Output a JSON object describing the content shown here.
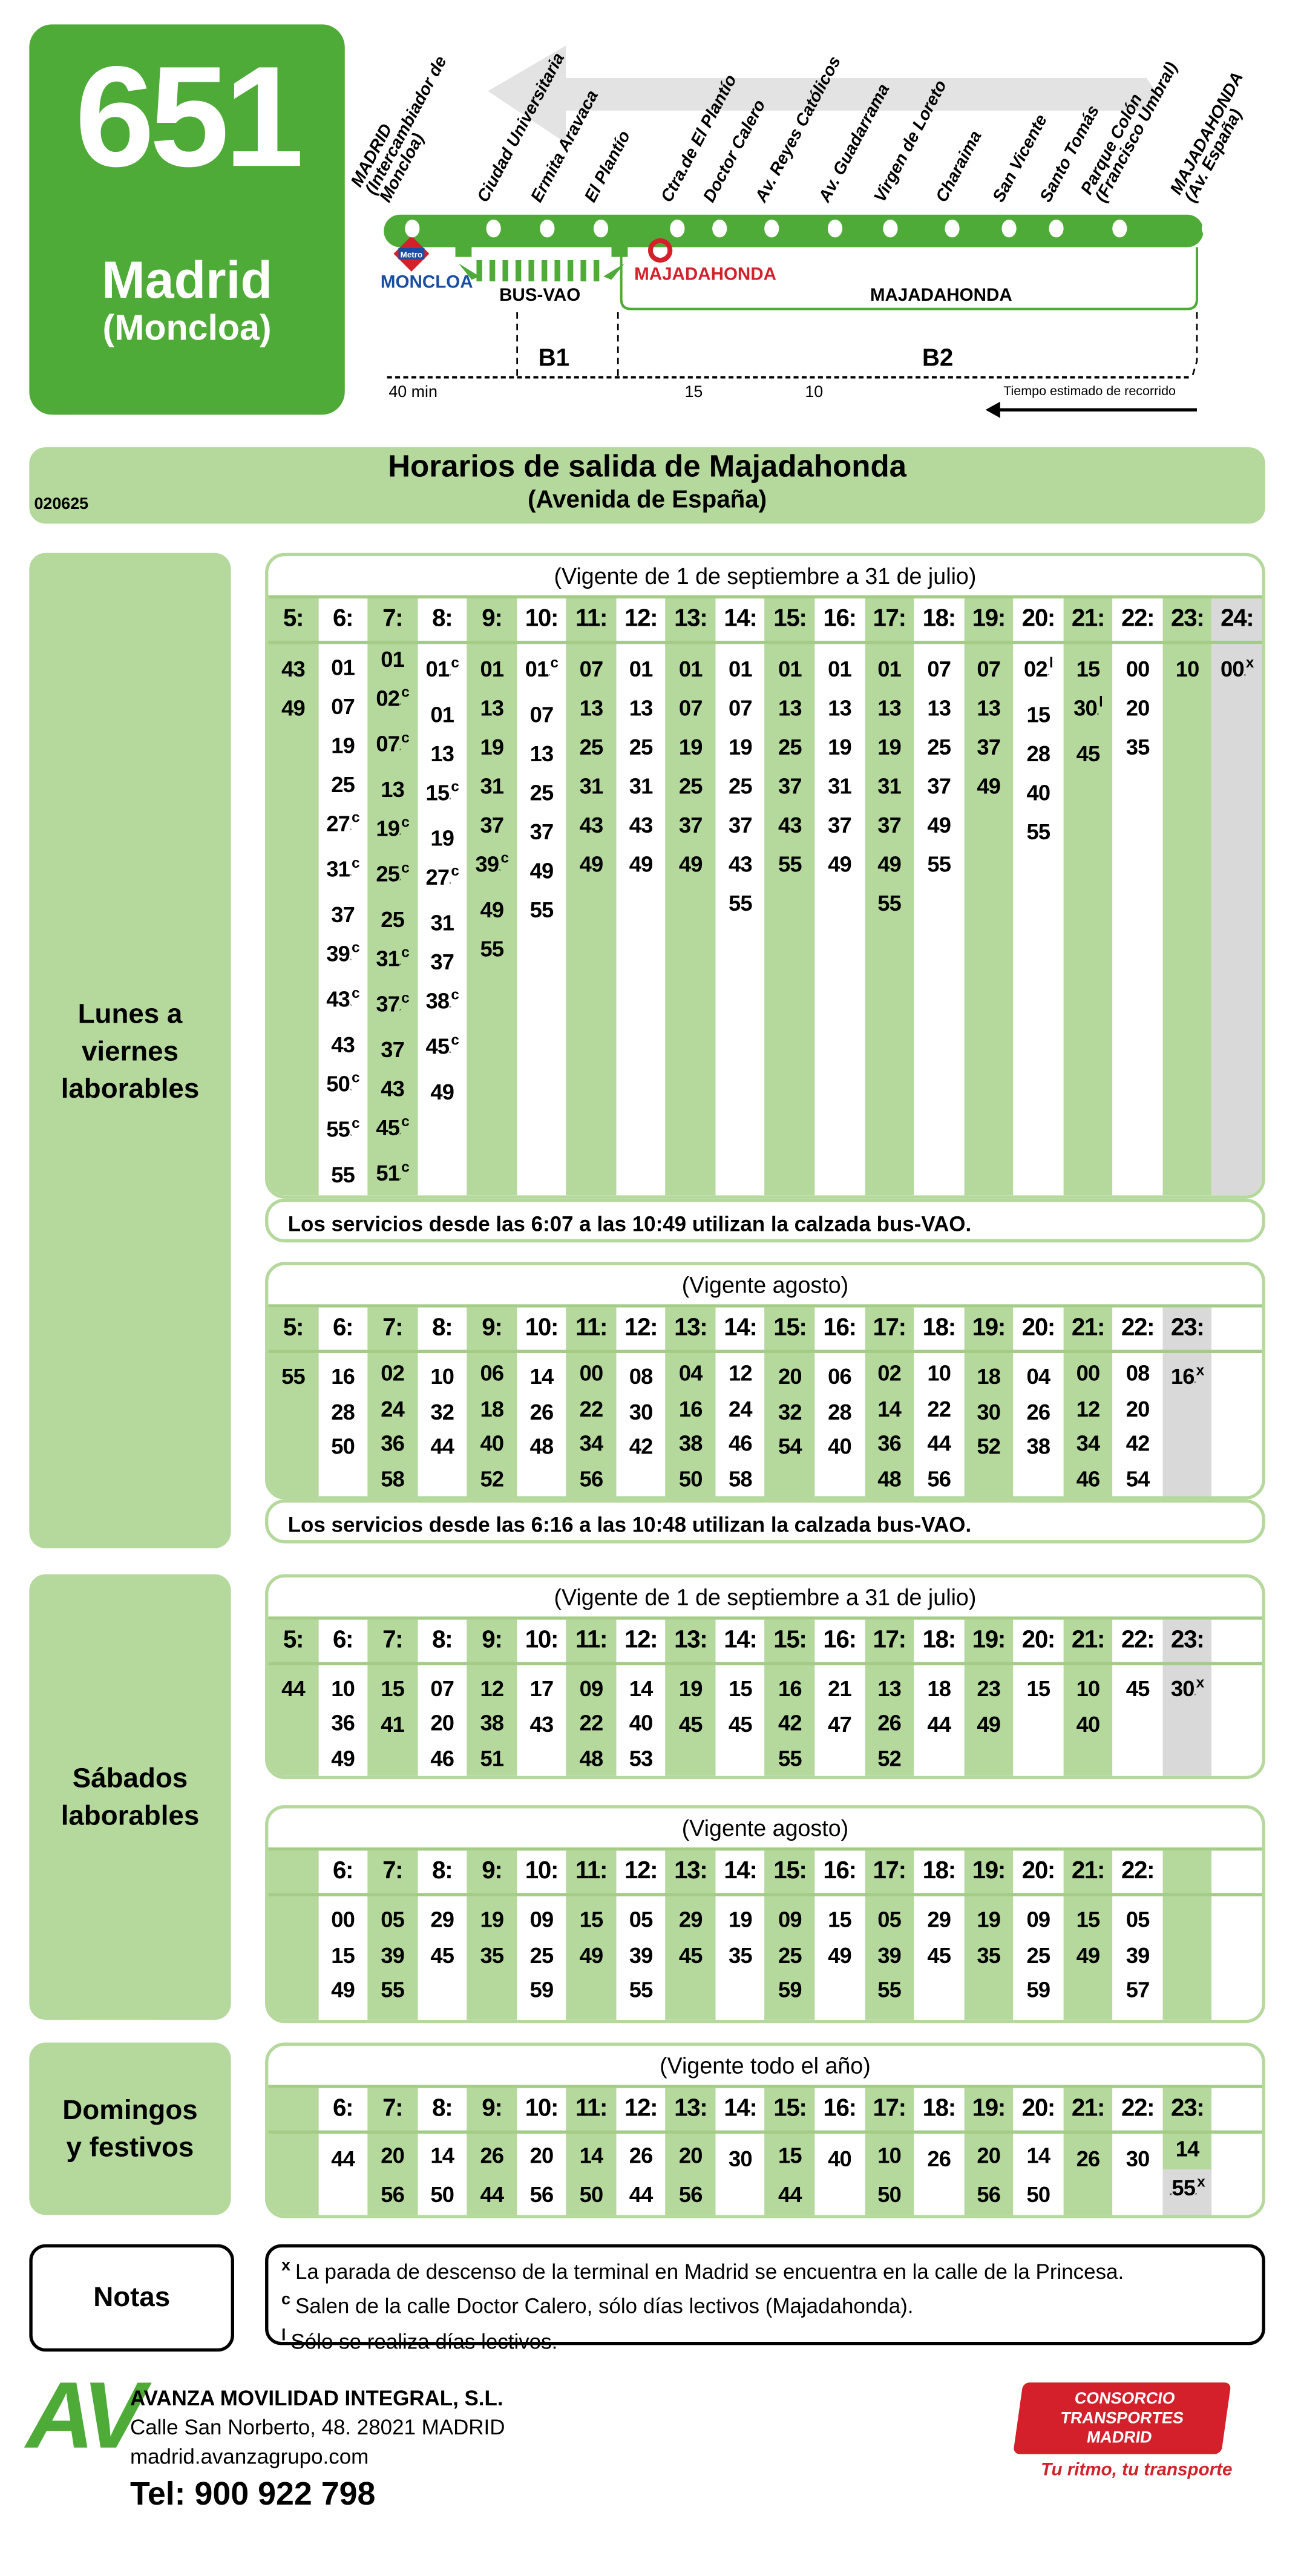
{
  "header": {
    "route_number": "651",
    "destination": "Madrid",
    "destination_sub": "(Moncloa)",
    "stops": [
      "MADRID\n(Intercambiador de\nMoncloa)",
      "Ciudad Universitaria",
      "Ermita Aravaca",
      "El Plantío",
      "Ctra.de El Plantío",
      "Doctor Calero",
      "Av. Reyes Católicos",
      "Av. Guadarrama",
      "Virgen de Loreto",
      "Charaima",
      "San Vicente",
      "Santo Tomás",
      "Parque Colón\n(Francisco Umbral)",
      "MAJADAHONDA\n(Av. España)"
    ],
    "moncloa_label": "MONCLOA",
    "metro_logo_text": "Metro",
    "busvao_label": "BUS-VAO",
    "majadahonda_red_label": "MAJADAHONDA",
    "majadahonda_zone_label": "MAJADAHONDA",
    "zone_b1": "B1",
    "zone_b2": "B2",
    "time_40": "40 min",
    "time_15": "15",
    "time_10": "10",
    "time_caption": "Tiempo estimado de recorrido",
    "colors": {
      "brand_green": "#4fab37",
      "light_green": "#b5d89c",
      "metro_red": "#d4202a",
      "moncloa_blue": "#1a4fa0"
    }
  },
  "title": {
    "line1": "Horarios de salida de Majadahonda",
    "line2": "(Avenida de España)",
    "code": "020625"
  },
  "sections": {
    "weekday": "Lunes a\nviernes\nlaborables",
    "saturday": "Sábados\nlaborables",
    "sunday": "Domingos\ny festivos",
    "notes": "Notas"
  },
  "tables": {
    "wk_sep": {
      "caption": "(Vigente de 1 de septiembre a 31 de julio)",
      "columns": [
        {
          "h": "5:",
          "bg": "g",
          "t": [
            "43",
            "49"
          ]
        },
        {
          "h": "6:",
          "bg": "w",
          "t": [
            "01",
            "07",
            "19",
            "25",
            "27^c",
            "31^c",
            "37",
            "39^c",
            "43^c",
            "43",
            "50^c",
            "55^c",
            "55"
          ]
        },
        {
          "h": "7:",
          "bg": "g",
          "t": [
            "01",
            "02^c",
            "07^c",
            "13",
            "19^c",
            "25^c",
            "25",
            "31^c",
            "37^c",
            "37",
            "43",
            "45^c",
            "51^c",
            "55"
          ]
        },
        {
          "h": "8:",
          "bg": "w",
          "t": [
            "01^c",
            "01",
            "13",
            "15^c",
            "19",
            "27^c",
            "31",
            "37",
            "38^c",
            "45^c",
            "49"
          ]
        },
        {
          "h": "9:",
          "bg": "g",
          "t": [
            "01",
            "13",
            "19",
            "31",
            "37",
            "39^c",
            "49",
            "55"
          ]
        },
        {
          "h": "10:",
          "bg": "w",
          "t": [
            "01^c",
            "07",
            "13",
            "25",
            "37",
            "49",
            "55"
          ]
        },
        {
          "h": "11:",
          "bg": "g",
          "t": [
            "07",
            "13",
            "25",
            "31",
            "43",
            "49"
          ]
        },
        {
          "h": "12:",
          "bg": "w",
          "t": [
            "01",
            "13",
            "25",
            "31",
            "43",
            "49"
          ]
        },
        {
          "h": "13:",
          "bg": "g",
          "t": [
            "01",
            "07",
            "19",
            "25",
            "37",
            "49"
          ]
        },
        {
          "h": "14:",
          "bg": "w",
          "t": [
            "01",
            "07",
            "19",
            "25",
            "37",
            "43",
            "55"
          ]
        },
        {
          "h": "15:",
          "bg": "g",
          "t": [
            "01",
            "13",
            "25",
            "37",
            "43",
            "55"
          ]
        },
        {
          "h": "16:",
          "bg": "w",
          "t": [
            "01",
            "13",
            "19",
            "31",
            "37",
            "49"
          ]
        },
        {
          "h": "17:",
          "bg": "g",
          "t": [
            "01",
            "13",
            "19",
            "31",
            "37",
            "49",
            "55"
          ]
        },
        {
          "h": "18:",
          "bg": "w",
          "t": [
            "07",
            "13",
            "25",
            "37",
            "49",
            "55"
          ]
        },
        {
          "h": "19:",
          "bg": "g",
          "t": [
            "07",
            "13",
            "37",
            "49"
          ]
        },
        {
          "h": "20:",
          "bg": "w",
          "t": [
            "02^l",
            "15",
            "28",
            "40",
            "55"
          ]
        },
        {
          "h": "21:",
          "bg": "g",
          "t": [
            "15",
            "30^l",
            "45"
          ]
        },
        {
          "h": "22:",
          "bg": "w",
          "t": [
            "00",
            "20",
            "35"
          ]
        },
        {
          "h": "23:",
          "bg": "g",
          "t": [
            "10"
          ]
        },
        {
          "h": "24:",
          "bg": "x",
          "t": [
            "00^x"
          ]
        }
      ]
    },
    "wk_sep_note": "Los servicios desde las 6:07 a las 10:49 utilizan la calzada bus-VAO.",
    "wk_aug": {
      "caption": "(Vigente agosto)",
      "columns": [
        {
          "h": "5:",
          "bg": "g",
          "t": [
            "55"
          ]
        },
        {
          "h": "6:",
          "bg": "w",
          "t": [
            "16",
            "28",
            "50"
          ]
        },
        {
          "h": "7:",
          "bg": "g",
          "t": [
            "02",
            "24",
            "36",
            "58"
          ]
        },
        {
          "h": "8:",
          "bg": "w",
          "t": [
            "10",
            "32",
            "44"
          ]
        },
        {
          "h": "9:",
          "bg": "g",
          "t": [
            "06",
            "18",
            "40",
            "52"
          ]
        },
        {
          "h": "10:",
          "bg": "w",
          "t": [
            "14",
            "26",
            "48"
          ]
        },
        {
          "h": "11:",
          "bg": "g",
          "t": [
            "00",
            "22",
            "34",
            "56"
          ]
        },
        {
          "h": "12:",
          "bg": "w",
          "t": [
            "08",
            "30",
            "42"
          ]
        },
        {
          "h": "13:",
          "bg": "g",
          "t": [
            "04",
            "16",
            "38",
            "50"
          ]
        },
        {
          "h": "14:",
          "bg": "w",
          "t": [
            "12",
            "24",
            "46",
            "58"
          ]
        },
        {
          "h": "15:",
          "bg": "g",
          "t": [
            "20",
            "32",
            "54"
          ]
        },
        {
          "h": "16:",
          "bg": "w",
          "t": [
            "06",
            "28",
            "40"
          ]
        },
        {
          "h": "17:",
          "bg": "g",
          "t": [
            "02",
            "14",
            "36",
            "48"
          ]
        },
        {
          "h": "18:",
          "bg": "w",
          "t": [
            "10",
            "22",
            "44",
            "56"
          ]
        },
        {
          "h": "19:",
          "bg": "g",
          "t": [
            "18",
            "30",
            "52"
          ]
        },
        {
          "h": "20:",
          "bg": "w",
          "t": [
            "04",
            "26",
            "38"
          ]
        },
        {
          "h": "21:",
          "bg": "g",
          "t": [
            "00",
            "12",
            "34",
            "46"
          ]
        },
        {
          "h": "22:",
          "bg": "w",
          "t": [
            "08",
            "20",
            "42",
            "54"
          ]
        },
        {
          "h": "23:",
          "bg": "x",
          "t": [
            "16^x"
          ]
        },
        {
          "h": "",
          "bg": "w",
          "t": []
        }
      ]
    },
    "wk_aug_note": "Los servicios desde las 6:16 a las 10:48 utilizan la calzada bus-VAO.",
    "sat_sep": {
      "caption": "(Vigente de 1 de septiembre a 31 de julio)",
      "columns": [
        {
          "h": "5:",
          "bg": "g",
          "t": [
            "44"
          ]
        },
        {
          "h": "6:",
          "bg": "w",
          "t": [
            "10",
            "36",
            "49"
          ]
        },
        {
          "h": "7:",
          "bg": "g",
          "t": [
            "15",
            "41"
          ]
        },
        {
          "h": "8:",
          "bg": "w",
          "t": [
            "07",
            "20",
            "46"
          ]
        },
        {
          "h": "9:",
          "bg": "g",
          "t": [
            "12",
            "38",
            "51"
          ]
        },
        {
          "h": "10:",
          "bg": "w",
          "t": [
            "17",
            "43"
          ]
        },
        {
          "h": "11:",
          "bg": "g",
          "t": [
            "09",
            "22",
            "48"
          ]
        },
        {
          "h": "12:",
          "bg": "w",
          "t": [
            "14",
            "40",
            "53"
          ]
        },
        {
          "h": "13:",
          "bg": "g",
          "t": [
            "19",
            "45"
          ]
        },
        {
          "h": "14:",
          "bg": "w",
          "t": [
            "15",
            "45"
          ]
        },
        {
          "h": "15:",
          "bg": "g",
          "t": [
            "16",
            "42",
            "55"
          ]
        },
        {
          "h": "16:",
          "bg": "w",
          "t": [
            "21",
            "47"
          ]
        },
        {
          "h": "17:",
          "bg": "g",
          "t": [
            "13",
            "26",
            "52"
          ]
        },
        {
          "h": "18:",
          "bg": "w",
          "t": [
            "18",
            "44"
          ]
        },
        {
          "h": "19:",
          "bg": "g",
          "t": [
            "23",
            "49"
          ]
        },
        {
          "h": "20:",
          "bg": "w",
          "t": [
            "15"
          ]
        },
        {
          "h": "21:",
          "bg": "g",
          "t": [
            "10",
            "40"
          ]
        },
        {
          "h": "22:",
          "bg": "w",
          "t": [
            "45"
          ]
        },
        {
          "h": "23:",
          "bg": "x",
          "t": [
            "30^x"
          ]
        },
        {
          "h": "",
          "bg": "w",
          "t": []
        }
      ]
    },
    "sat_aug": {
      "caption": "(Vigente agosto)",
      "columns": [
        {
          "h": "",
          "bg": "g",
          "t": []
        },
        {
          "h": "6:",
          "bg": "w",
          "t": [
            "00",
            "15",
            "49"
          ]
        },
        {
          "h": "7:",
          "bg": "g",
          "t": [
            "05",
            "39",
            "55"
          ]
        },
        {
          "h": "8:",
          "bg": "w",
          "t": [
            "29",
            "45"
          ]
        },
        {
          "h": "9:",
          "bg": "g",
          "t": [
            "19",
            "35"
          ]
        },
        {
          "h": "10:",
          "bg": "w",
          "t": [
            "09",
            "25",
            "59"
          ]
        },
        {
          "h": "11:",
          "bg": "g",
          "t": [
            "15",
            "49"
          ]
        },
        {
          "h": "12:",
          "bg": "w",
          "t": [
            "05",
            "39",
            "55"
          ]
        },
        {
          "h": "13:",
          "bg": "g",
          "t": [
            "29",
            "45"
          ]
        },
        {
          "h": "14:",
          "bg": "w",
          "t": [
            "19",
            "35"
          ]
        },
        {
          "h": "15:",
          "bg": "g",
          "t": [
            "09",
            "25",
            "59"
          ]
        },
        {
          "h": "16:",
          "bg": "w",
          "t": [
            "15",
            "49"
          ]
        },
        {
          "h": "17:",
          "bg": "g",
          "t": [
            "05",
            "39",
            "55"
          ]
        },
        {
          "h": "18:",
          "bg": "w",
          "t": [
            "29",
            "45"
          ]
        },
        {
          "h": "19:",
          "bg": "g",
          "t": [
            "19",
            "35"
          ]
        },
        {
          "h": "20:",
          "bg": "w",
          "t": [
            "09",
            "25",
            "59"
          ]
        },
        {
          "h": "21:",
          "bg": "g",
          "t": [
            "15",
            "49"
          ]
        },
        {
          "h": "22:",
          "bg": "w",
          "t": [
            "05",
            "39",
            "57"
          ]
        },
        {
          "h": "",
          "bg": "g",
          "t": []
        },
        {
          "h": "",
          "bg": "w",
          "t": []
        }
      ]
    },
    "sun": {
      "caption": "(Vigente todo el año)",
      "columns": [
        {
          "h": "",
          "bg": "g",
          "t": []
        },
        {
          "h": "6:",
          "bg": "w",
          "t": [
            "44"
          ]
        },
        {
          "h": "7:",
          "bg": "g",
          "t": [
            "20",
            "56"
          ]
        },
        {
          "h": "8:",
          "bg": "w",
          "t": [
            "14",
            "50"
          ]
        },
        {
          "h": "9:",
          "bg": "g",
          "t": [
            "26",
            "44"
          ]
        },
        {
          "h": "10:",
          "bg": "w",
          "t": [
            "20",
            "56"
          ]
        },
        {
          "h": "11:",
          "bg": "g",
          "t": [
            "14",
            "50"
          ]
        },
        {
          "h": "12:",
          "bg": "w",
          "t": [
            "26",
            "44"
          ]
        },
        {
          "h": "13:",
          "bg": "g",
          "t": [
            "20",
            "56"
          ]
        },
        {
          "h": "14:",
          "bg": "w",
          "t": [
            "30"
          ]
        },
        {
          "h": "15:",
          "bg": "g",
          "t": [
            "15",
            "44"
          ]
        },
        {
          "h": "16:",
          "bg": "w",
          "t": [
            "40"
          ]
        },
        {
          "h": "17:",
          "bg": "g",
          "t": [
            "10",
            "50"
          ]
        },
        {
          "h": "18:",
          "bg": "w",
          "t": [
            "26"
          ]
        },
        {
          "h": "19:",
          "bg": "g",
          "t": [
            "20",
            "56"
          ]
        },
        {
          "h": "20:",
          "bg": "w",
          "t": [
            "14",
            "50"
          ]
        },
        {
          "h": "21:",
          "bg": "g",
          "t": [
            "26"
          ]
        },
        {
          "h": "22:",
          "bg": "w",
          "t": [
            "30"
          ]
        },
        {
          "h": "23:",
          "bg": "g",
          "t": [
            "14",
            "#55^x"
          ]
        },
        {
          "h": "",
          "bg": "w",
          "t": []
        }
      ]
    }
  },
  "notes": [
    {
      "mark": "x",
      "text": "La parada de descenso de la terminal en Madrid se encuentra en la calle de la Princesa."
    },
    {
      "mark": "c",
      "text": "Salen de la calle Doctor Calero, sólo días lectivos (Majadahonda)."
    },
    {
      "mark": "l",
      "text": "Sólo se realiza días lectivos."
    }
  ],
  "footer": {
    "logo": "AV",
    "company": "AVANZA MOVILIDAD INTEGRAL, S.L.",
    "address": "Calle San Norberto, 48. 28021 MADRID",
    "web": "madrid.avanzagrupo.com",
    "phone": "Tel: 900 922 798",
    "ctm_line1": "CONSORCIO",
    "ctm_line2": "TRANSPORTES",
    "ctm_line3": "MADRID",
    "ctm_slogan": "Tu ritmo, tu transporte"
  }
}
